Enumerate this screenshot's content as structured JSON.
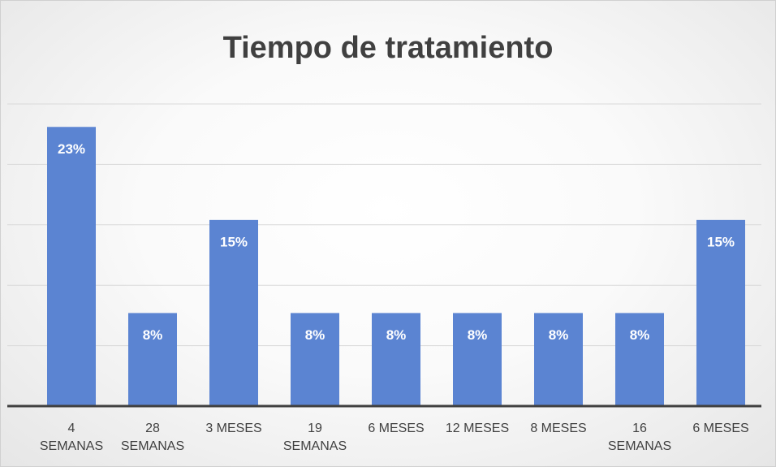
{
  "chart_data": {
    "type": "bar",
    "title": "Tiempo de tratamiento",
    "categories": [
      "4 SEMANAS",
      "28 SEMANAS",
      "3 MESES",
      "19 SEMANAS",
      "6 MESES",
      "12 MESES",
      "8 MESES",
      "16 SEMANAS",
      "6 MESES"
    ],
    "values": [
      23.1,
      7.7,
      15.4,
      7.7,
      7.7,
      7.7,
      7.7,
      7.7,
      15.4
    ],
    "value_labels": [
      "23%",
      "8%",
      "15%",
      "8%",
      "8%",
      "8%",
      "8%",
      "8%",
      "15%"
    ],
    "color": "#5b84d2",
    "ylim": [
      0,
      25
    ],
    "yticks": [
      0,
      5,
      10,
      15,
      20,
      25
    ],
    "grid": true
  }
}
